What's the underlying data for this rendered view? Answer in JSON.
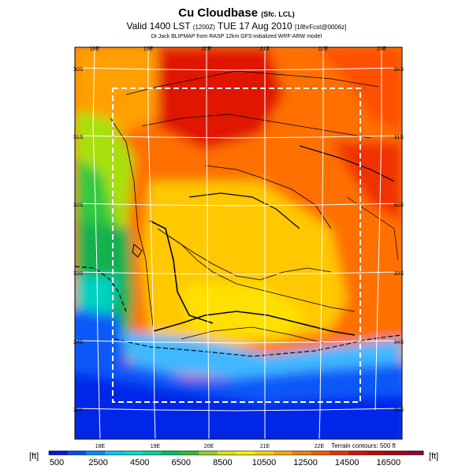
{
  "header": {
    "title": "Cu Cloudbase",
    "title_suffix": "(Sfc. LCL)",
    "valid": "Valid 1400 LST",
    "valid_code": "(1200Z)",
    "valid_date": "TUE 17 Aug 2010",
    "forecast": "[18hrFcst@0006z]",
    "credit": "Dr.Jack BLIPMAP from RASP 12km GFS-initialized WRF-ARW model"
  },
  "map": {
    "lon_ticks_top": [
      "18E",
      "19E",
      "20E",
      "21E",
      "22E",
      "23E"
    ],
    "lon_ticks_bottom": [
      "18E",
      "19E",
      "20E",
      "21E",
      "22E"
    ],
    "lat_ticks_left": [
      "30S",
      "31S",
      "32S",
      "33S",
      "34S",
      "35S"
    ],
    "lat_ticks_right": [
      "30S",
      "31S",
      "32S",
      "33S",
      "34S",
      "35S"
    ],
    "terrain_note": "Terrain contours: 500 ft"
  },
  "colorbar": {
    "unit_left": "[ft]",
    "unit_right": "[ft]",
    "labels": [
      "500",
      "2500",
      "4500",
      "6500",
      "8500",
      "10500",
      "12500",
      "14500",
      "16500"
    ],
    "colors": [
      "#0018e8",
      "#0050ff",
      "#0090ff",
      "#00c8ff",
      "#00e0d0",
      "#00d8a0",
      "#00c060",
      "#30c030",
      "#90d820",
      "#d8e810",
      "#fff000",
      "#ffd000",
      "#ffa800",
      "#ff8000",
      "#ff5800",
      "#f03000",
      "#e01000",
      "#c80000",
      "#b00010",
      "#9c0030"
    ]
  }
}
